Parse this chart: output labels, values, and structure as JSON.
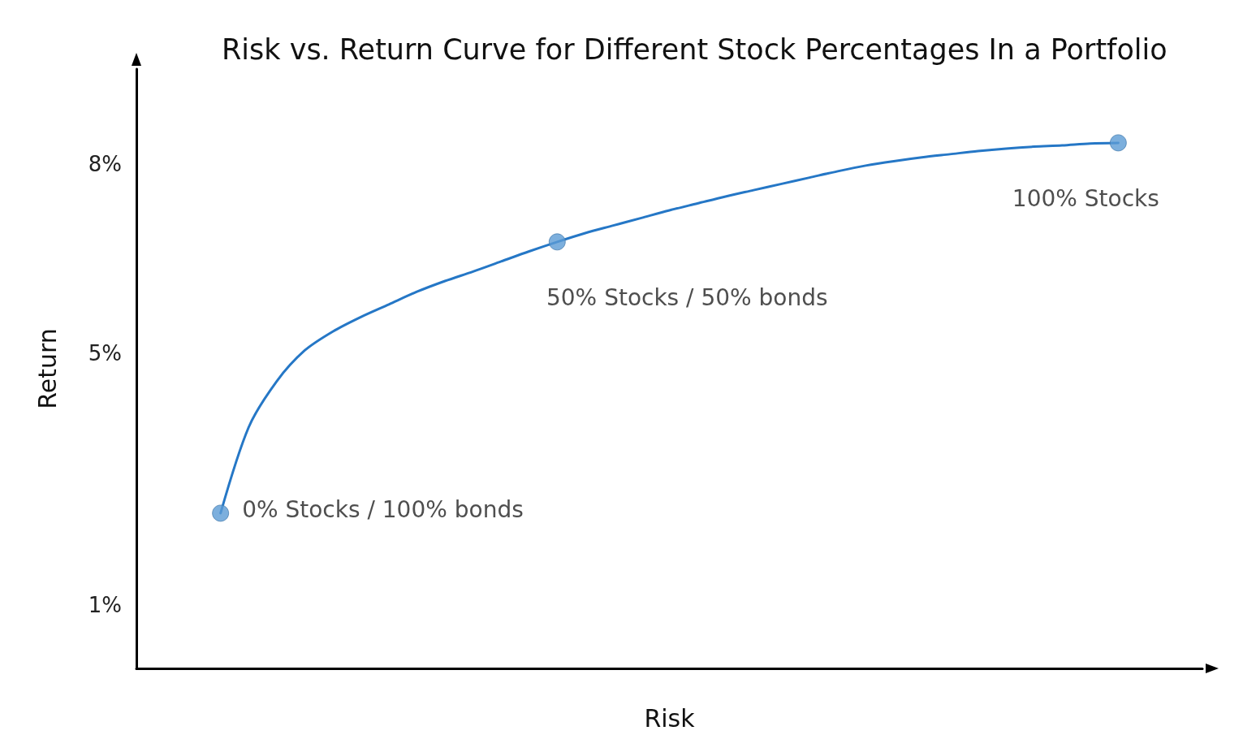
{
  "chart_data": {
    "type": "line",
    "title": "Risk vs. Return Curve for Different Stock Percentages In a Portfolio",
    "xlabel": "Risk",
    "ylabel": "Return",
    "categories": [
      null,
      null,
      null,
      null,
      null,
      null,
      null,
      null,
      null,
      null,
      null,
      null,
      null,
      null,
      null,
      null,
      null,
      null,
      null,
      null,
      null,
      null,
      null,
      null,
      null,
      null,
      null,
      null,
      null,
      null,
      null,
      null,
      null,
      null,
      null,
      null,
      null,
      null,
      null
    ],
    "series": [
      {
        "color": "#2577c6",
        "marker": "none",
        "line_style": "solid",
        "values": [
          null,
          null,
          null,
          2.46,
          3.82,
          4.55,
          5.04,
          5.34,
          5.57,
          5.77,
          5.97,
          6.14,
          6.29,
          6.45,
          6.61,
          6.76,
          6.9,
          7.02,
          7.14,
          7.26,
          7.37,
          7.48,
          7.58,
          7.68,
          7.78,
          7.88,
          7.97,
          8.04,
          8.1,
          8.15,
          8.2,
          8.24,
          8.27,
          8.29,
          8.32,
          8.33,
          null,
          null,
          null
        ]
      },
      {
        "type": "scatter",
        "color": "#5b9bd5",
        "marker": "circle",
        "values": [
          null,
          null,
          null,
          2.46,
          null,
          null,
          null,
          null,
          null,
          null,
          null,
          null,
          null,
          null,
          null,
          6.76,
          null,
          null,
          null,
          null,
          null,
          null,
          null,
          null,
          null,
          null,
          null,
          null,
          null,
          null,
          null,
          null,
          null,
          null,
          null,
          8.33,
          null,
          null,
          null
        ]
      }
    ],
    "annotations": [
      "0% Stocks / 100% bonds",
      "50% Stocks / 50% bonds",
      "100% Stocks"
    ],
    "ylim": [
      0,
      9.5
    ],
    "yticks": [
      {
        "value": 1,
        "label": "1%"
      },
      {
        "value": 5,
        "label": "5%"
      },
      {
        "value": 8,
        "label": "8%"
      }
    ]
  }
}
